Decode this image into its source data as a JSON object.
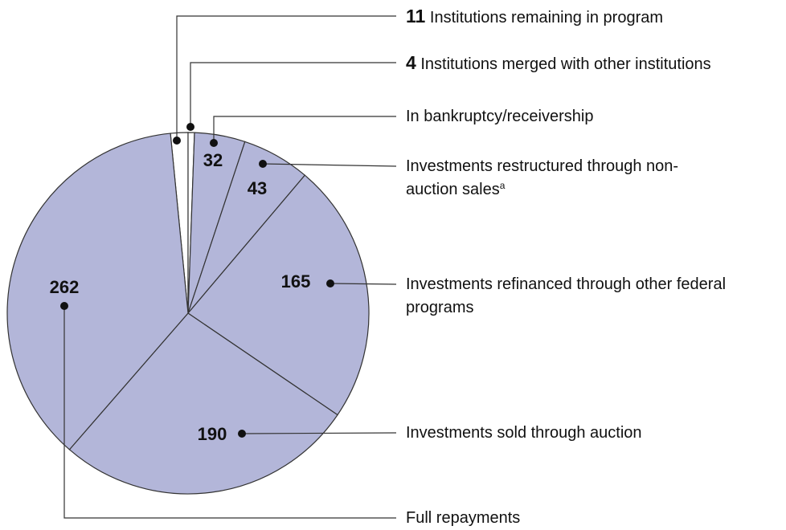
{
  "chart_data": {
    "type": "pie",
    "categories": [
      "Institutions remaining in program",
      "Institutions merged with other institutions",
      "In bankruptcy/receivership",
      "Investments restructured through non-auction sales",
      "Investments refinanced through other federal programs",
      "Investments sold through auction",
      "Full repayments"
    ],
    "category_notes": {
      "3": "a"
    },
    "values": [
      11,
      4,
      32,
      43,
      165,
      190,
      262
    ],
    "colors": [
      "#ffffff",
      "#ffffff",
      "#b3b6d9",
      "#b3b6d9",
      "#b3b6d9",
      "#b3b6d9",
      "#b3b6d9"
    ]
  }
}
